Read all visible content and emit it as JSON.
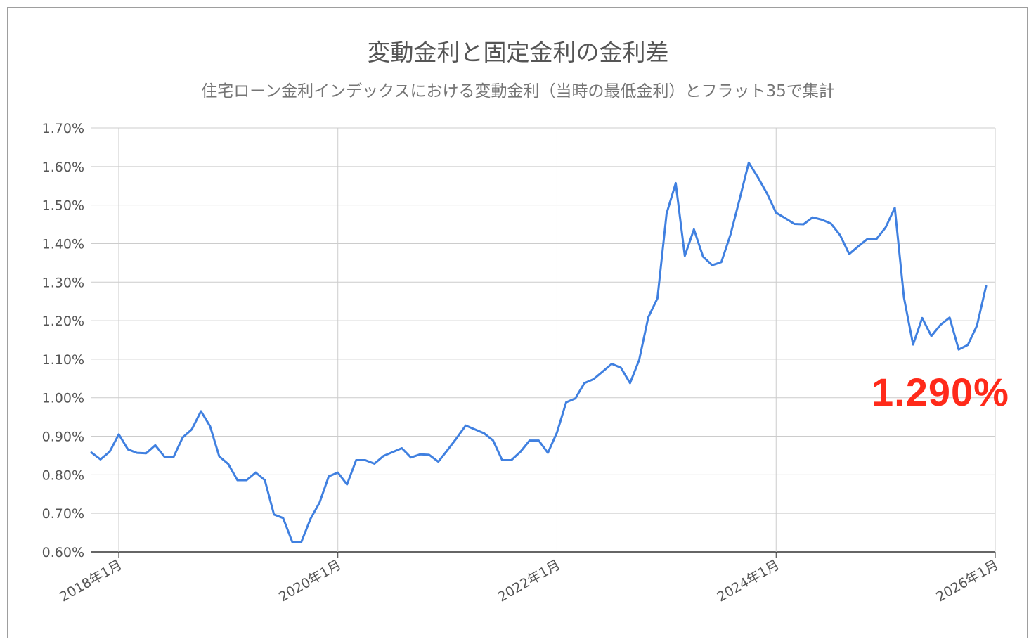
{
  "chart_data": {
    "type": "line",
    "title": "変動金利と固定金利の金利差",
    "subtitle": "住宅ローン金利インデックスにおける変動金利（当時の最低金利）とフラット35で集計",
    "xlabel": "",
    "ylabel": "",
    "ylim": [
      0.006,
      0.017
    ],
    "x_range": [
      "2017-10",
      "2026-01"
    ],
    "grid": true,
    "y_ticks": [
      "0.60%",
      "0.70%",
      "0.80%",
      "0.90%",
      "1.00%",
      "1.10%",
      "1.20%",
      "1.30%",
      "1.40%",
      "1.50%",
      "1.60%",
      "1.70%"
    ],
    "x_ticks": [
      {
        "value": "2018-01",
        "label": "2018年1月"
      },
      {
        "value": "2020-01",
        "label": "2020年1月"
      },
      {
        "value": "2022-01",
        "label": "2022年1月"
      },
      {
        "value": "2024-01",
        "label": "2024年1月"
      },
      {
        "value": "2026-01",
        "label": "2026年1月"
      }
    ],
    "series": [
      {
        "color": "#4080e0",
        "points": [
          [
            "2017-10",
            0.00858
          ],
          [
            "2017-11",
            0.0084
          ],
          [
            "2017-12",
            0.0086
          ],
          [
            "2018-01",
            0.00905
          ],
          [
            "2018-02",
            0.00866
          ],
          [
            "2018-03",
            0.00857
          ],
          [
            "2018-04",
            0.00856
          ],
          [
            "2018-05",
            0.00877
          ],
          [
            "2018-06",
            0.00847
          ],
          [
            "2018-07",
            0.00846
          ],
          [
            "2018-08",
            0.00897
          ],
          [
            "2018-09",
            0.00918
          ],
          [
            "2018-10",
            0.00965
          ],
          [
            "2018-11",
            0.00926
          ],
          [
            "2018-12",
            0.00848
          ],
          [
            "2019-01",
            0.00828
          ],
          [
            "2019-02",
            0.00786
          ],
          [
            "2019-03",
            0.00786
          ],
          [
            "2019-04",
            0.00806
          ],
          [
            "2019-05",
            0.00786
          ],
          [
            "2019-06",
            0.00697
          ],
          [
            "2019-07",
            0.00688
          ],
          [
            "2019-08",
            0.00626
          ],
          [
            "2019-09",
            0.00626
          ],
          [
            "2019-10",
            0.00686
          ],
          [
            "2019-11",
            0.00728
          ],
          [
            "2019-12",
            0.00796
          ],
          [
            "2020-01",
            0.00806
          ],
          [
            "2020-02",
            0.00775
          ],
          [
            "2020-03",
            0.00838
          ],
          [
            "2020-04",
            0.00838
          ],
          [
            "2020-05",
            0.00829
          ],
          [
            "2020-06",
            0.00849
          ],
          [
            "2020-07",
            0.00859
          ],
          [
            "2020-08",
            0.00869
          ],
          [
            "2020-09",
            0.00845
          ],
          [
            "2020-10",
            0.00853
          ],
          [
            "2020-11",
            0.00852
          ],
          [
            "2020-12",
            0.00834
          ],
          [
            "2021-01",
            0.00864
          ],
          [
            "2021-02",
            0.00895
          ],
          [
            "2021-03",
            0.00928
          ],
          [
            "2021-04",
            0.00918
          ],
          [
            "2021-05",
            0.00908
          ],
          [
            "2021-06",
            0.00889
          ],
          [
            "2021-07",
            0.00838
          ],
          [
            "2021-08",
            0.00838
          ],
          [
            "2021-09",
            0.0086
          ],
          [
            "2021-10",
            0.00889
          ],
          [
            "2021-11",
            0.00889
          ],
          [
            "2021-12",
            0.00857
          ],
          [
            "2022-01",
            0.0091
          ],
          [
            "2022-02",
            0.00988
          ],
          [
            "2022-03",
            0.00998
          ],
          [
            "2022-04",
            0.01038
          ],
          [
            "2022-05",
            0.01048
          ],
          [
            "2022-06",
            0.01068
          ],
          [
            "2022-07",
            0.01088
          ],
          [
            "2022-08",
            0.01078
          ],
          [
            "2022-09",
            0.01038
          ],
          [
            "2022-10",
            0.01098
          ],
          [
            "2022-11",
            0.01209
          ],
          [
            "2022-12",
            0.01258
          ],
          [
            "2023-01",
            0.01478
          ],
          [
            "2023-02",
            0.01557
          ],
          [
            "2023-03",
            0.01368
          ],
          [
            "2023-04",
            0.01437
          ],
          [
            "2023-05",
            0.01366
          ],
          [
            "2023-06",
            0.01344
          ],
          [
            "2023-07",
            0.01352
          ],
          [
            "2023-08",
            0.01423
          ],
          [
            "2023-09",
            0.01515
          ],
          [
            "2023-10",
            0.0161
          ],
          [
            "2023-11",
            0.01572
          ],
          [
            "2023-12",
            0.0153
          ],
          [
            "2024-01",
            0.0148
          ],
          [
            "2024-02",
            0.01466
          ],
          [
            "2024-03",
            0.01451
          ],
          [
            "2024-04",
            0.0145
          ],
          [
            "2024-05",
            0.01468
          ],
          [
            "2024-06",
            0.01462
          ],
          [
            "2024-07",
            0.01452
          ],
          [
            "2024-08",
            0.01422
          ],
          [
            "2024-09",
            0.01373
          ],
          [
            "2024-10",
            0.01393
          ],
          [
            "2024-11",
            0.01412
          ],
          [
            "2024-12",
            0.01412
          ],
          [
            "2025-01",
            0.01442
          ],
          [
            "2025-02",
            0.01493
          ],
          [
            "2025-03",
            0.0126
          ],
          [
            "2025-04",
            0.01138
          ],
          [
            "2025-05",
            0.01207
          ],
          [
            "2025-06",
            0.0116
          ],
          [
            "2025-07",
            0.01189
          ],
          [
            "2025-08",
            0.01208
          ],
          [
            "2025-09",
            0.01125
          ],
          [
            "2025-10",
            0.01137
          ],
          [
            "2025-11",
            0.01187
          ],
          [
            "2025-12",
            0.0129
          ]
        ]
      }
    ],
    "callout": "1.290%"
  }
}
